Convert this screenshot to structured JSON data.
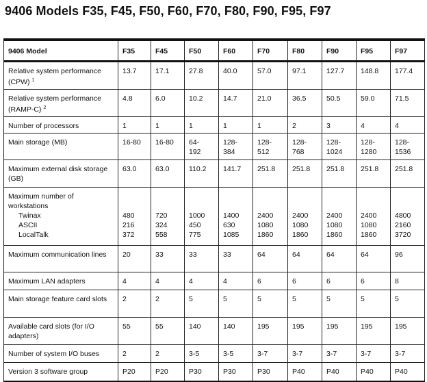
{
  "title": "9406 Models F35, F45, F50, F60, F70, F80, F90, F95, F97",
  "table": {
    "header_label": "9406 Model",
    "models": [
      "F35",
      "F45",
      "F50",
      "F60",
      "F70",
      "F80",
      "F90",
      "F95",
      "F97"
    ],
    "rows": [
      {
        "label": "Relative system performance (CPW)",
        "sup": "1",
        "values": [
          "13.7",
          "17.1",
          "27.8",
          "40.0",
          "57.0",
          "97.1",
          "127.7",
          "148.8",
          "177.4"
        ]
      },
      {
        "label": "Relative system performance (RAMP-C)",
        "sup": "2",
        "values": [
          "4.8",
          "6.0",
          "10.2",
          "14.7",
          "21.0",
          "36.5",
          "50.5",
          "59.0",
          "71.5"
        ]
      },
      {
        "label": "Number of processors",
        "values": [
          "1",
          "1",
          "1",
          "1",
          "1",
          "2",
          "3",
          "4",
          "4"
        ]
      },
      {
        "label": "Main storage (MB)",
        "values": [
          "16-80",
          "16-80",
          "64-192",
          "128-384",
          "128-512",
          "128-768",
          "128-1024",
          "128-1280",
          "128-1536"
        ]
      },
      {
        "label": "Maximum external disk storage (GB)",
        "values": [
          "63.0",
          "63.0",
          "110.2",
          "141.7",
          "251.8",
          "251.8",
          "251.8",
          "251.8",
          "251.8"
        ]
      },
      {
        "label": "Maximum number of workstations",
        "sublabels": [
          "Twinax",
          "ASCII",
          "LocalTalk"
        ],
        "subvalues": [
          [
            "480",
            "216",
            "372"
          ],
          [
            "720",
            "324",
            "558"
          ],
          [
            "1000",
            "450",
            "775"
          ],
          [
            "1400",
            "630",
            "1085"
          ],
          [
            "2400",
            "1080",
            "1860"
          ],
          [
            "2400",
            "1080",
            "1860"
          ],
          [
            "2400",
            "1080",
            "1860"
          ],
          [
            "2400",
            "1080",
            "1860"
          ],
          [
            "4800",
            "2160",
            "3720"
          ]
        ]
      },
      {
        "label": "Maximum communication lines",
        "values": [
          "20",
          "33",
          "33",
          "33",
          "64",
          "64",
          "64",
          "64",
          "96"
        ]
      },
      {
        "label": "Maximum LAN adapters",
        "values": [
          "4",
          "4",
          "4",
          "4",
          "6",
          "6",
          "6",
          "6",
          "8"
        ]
      },
      {
        "label": "Main storage feature card slots",
        "values": [
          "2",
          "2",
          "5",
          "5",
          "5",
          "5",
          "5",
          "5",
          "5"
        ]
      },
      {
        "label": "Available card slots (for I/O adapters)",
        "values": [
          "55",
          "55",
          "140",
          "140",
          "195",
          "195",
          "195",
          "195",
          "195"
        ]
      },
      {
        "label": "Number of system I/O buses",
        "values": [
          "2",
          "2",
          "3-5",
          "3-5",
          "3-7",
          "3-7",
          "3-7",
          "3-7",
          "3-7"
        ]
      },
      {
        "label": "Version 3 software group",
        "values": [
          "P20",
          "P20",
          "P30",
          "P30",
          "P30",
          "P40",
          "P40",
          "P40",
          "P40"
        ]
      }
    ]
  }
}
